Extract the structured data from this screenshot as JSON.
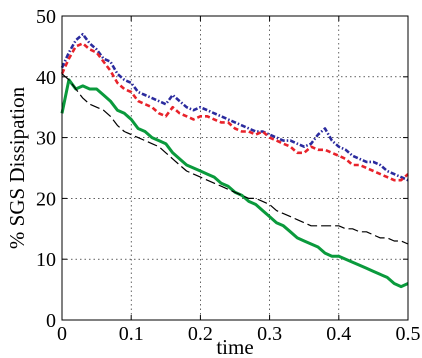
{
  "chart_data": {
    "type": "line",
    "title": "",
    "xlabel": "time",
    "ylabel": "% SGS Dissipation",
    "xlim": [
      0,
      0.5
    ],
    "ylim": [
      0,
      50
    ],
    "xticks": [
      0,
      0.1,
      0.2,
      0.3,
      0.4,
      0.5
    ],
    "xtick_labels": [
      "0",
      "0.1",
      "0.2",
      "0.3",
      "0.4",
      "0.5"
    ],
    "yticks": [
      0,
      10,
      20,
      30,
      40,
      50
    ],
    "ytick_labels": [
      "0",
      "10",
      "20",
      "30",
      "40",
      "50"
    ],
    "grid": true,
    "legend": "none",
    "series": [
      {
        "color": "#2b2b9e",
        "style": "dash-dot",
        "x": [
          0.0,
          0.01,
          0.02,
          0.03,
          0.04,
          0.05,
          0.06,
          0.07,
          0.08,
          0.09,
          0.1,
          0.11,
          0.12,
          0.13,
          0.14,
          0.15,
          0.16,
          0.17,
          0.18,
          0.19,
          0.2,
          0.21,
          0.22,
          0.23,
          0.24,
          0.25,
          0.26,
          0.27,
          0.28,
          0.29,
          0.3,
          0.31,
          0.32,
          0.33,
          0.34,
          0.35,
          0.36,
          0.37,
          0.38,
          0.39,
          0.4,
          0.41,
          0.42,
          0.43,
          0.44,
          0.45,
          0.46,
          0.47,
          0.48,
          0.49,
          0.5
        ],
        "y": [
          41.5,
          44.0,
          46.0,
          47.0,
          45.5,
          44.5,
          43.0,
          42.5,
          40.5,
          39.5,
          39.0,
          37.5,
          37.0,
          36.5,
          36.0,
          35.5,
          37.0,
          36.0,
          35.0,
          34.5,
          35.0,
          34.5,
          34.0,
          33.5,
          33.0,
          32.5,
          32.0,
          31.5,
          31.0,
          31.0,
          30.5,
          30.0,
          29.5,
          29.5,
          29.0,
          28.5,
          29.0,
          30.5,
          31.5,
          29.5,
          28.5,
          28.0,
          27.0,
          26.5,
          26.0,
          26.0,
          25.5,
          24.5,
          24.0,
          23.5,
          23.0
        ]
      },
      {
        "color": "#e8232b",
        "style": "dashed",
        "x": [
          0.0,
          0.01,
          0.02,
          0.03,
          0.04,
          0.05,
          0.06,
          0.07,
          0.08,
          0.09,
          0.1,
          0.11,
          0.12,
          0.13,
          0.14,
          0.15,
          0.16,
          0.17,
          0.18,
          0.19,
          0.2,
          0.21,
          0.22,
          0.23,
          0.24,
          0.25,
          0.26,
          0.27,
          0.28,
          0.29,
          0.3,
          0.31,
          0.32,
          0.33,
          0.34,
          0.35,
          0.36,
          0.37,
          0.38,
          0.39,
          0.4,
          0.41,
          0.42,
          0.43,
          0.44,
          0.45,
          0.46,
          0.47,
          0.48,
          0.49,
          0.5
        ],
        "y": [
          40.5,
          43.0,
          45.0,
          45.5,
          44.5,
          44.0,
          42.5,
          41.0,
          39.0,
          38.0,
          37.5,
          36.0,
          35.5,
          35.0,
          34.0,
          33.5,
          35.0,
          34.0,
          33.5,
          33.0,
          33.5,
          33.5,
          33.0,
          32.5,
          32.5,
          31.5,
          31.0,
          31.0,
          30.5,
          31.0,
          30.0,
          29.5,
          29.0,
          28.5,
          27.5,
          27.5,
          28.5,
          28.0,
          28.0,
          27.5,
          27.0,
          26.5,
          25.5,
          25.5,
          25.0,
          24.5,
          24.0,
          23.5,
          23.0,
          23.0,
          24.0
        ]
      },
      {
        "color": "#0a9a3c",
        "style": "solid",
        "x": [
          0.0,
          0.01,
          0.02,
          0.03,
          0.04,
          0.05,
          0.06,
          0.07,
          0.08,
          0.09,
          0.1,
          0.11,
          0.12,
          0.13,
          0.14,
          0.15,
          0.16,
          0.17,
          0.18,
          0.19,
          0.2,
          0.21,
          0.22,
          0.23,
          0.24,
          0.25,
          0.26,
          0.27,
          0.28,
          0.29,
          0.3,
          0.31,
          0.32,
          0.33,
          0.34,
          0.35,
          0.36,
          0.37,
          0.38,
          0.39,
          0.4,
          0.41,
          0.42,
          0.43,
          0.44,
          0.45,
          0.46,
          0.47,
          0.48,
          0.49,
          0.5
        ],
        "y": [
          34.0,
          39.5,
          38.0,
          38.5,
          38.0,
          38.0,
          37.0,
          36.0,
          34.5,
          34.0,
          33.0,
          31.5,
          31.0,
          30.0,
          29.5,
          29.0,
          27.5,
          26.5,
          25.5,
          25.0,
          24.5,
          24.0,
          23.5,
          22.5,
          22.0,
          21.0,
          20.5,
          19.5,
          19.0,
          18.0,
          17.0,
          16.0,
          15.5,
          14.5,
          13.5,
          13.0,
          12.5,
          12.0,
          11.0,
          10.5,
          10.5,
          10.0,
          9.5,
          9.0,
          8.5,
          8.0,
          7.5,
          7.0,
          6.0,
          5.5,
          6.0
        ]
      },
      {
        "color": "#000000",
        "style": "long-dash",
        "x": [
          0.0,
          0.01,
          0.02,
          0.03,
          0.04,
          0.05,
          0.06,
          0.07,
          0.08,
          0.09,
          0.1,
          0.11,
          0.12,
          0.13,
          0.14,
          0.15,
          0.16,
          0.17,
          0.18,
          0.19,
          0.2,
          0.21,
          0.22,
          0.23,
          0.24,
          0.25,
          0.26,
          0.27,
          0.28,
          0.29,
          0.3,
          0.31,
          0.32,
          0.33,
          0.34,
          0.35,
          0.36,
          0.37,
          0.38,
          0.39,
          0.4,
          0.41,
          0.42,
          0.43,
          0.44,
          0.45,
          0.46,
          0.47,
          0.48,
          0.49,
          0.5
        ],
        "y": [
          40.5,
          39.5,
          38.0,
          36.5,
          35.5,
          35.0,
          34.5,
          33.5,
          32.0,
          31.0,
          30.5,
          30.0,
          29.5,
          29.0,
          28.5,
          27.5,
          26.5,
          25.5,
          24.5,
          24.0,
          23.5,
          23.0,
          22.5,
          22.0,
          21.5,
          21.0,
          20.5,
          20.0,
          20.0,
          19.5,
          19.0,
          18.0,
          17.5,
          17.0,
          16.5,
          16.0,
          15.5,
          15.5,
          15.5,
          15.5,
          15.5,
          15.0,
          15.0,
          14.5,
          14.5,
          14.0,
          13.5,
          13.5,
          13.0,
          13.0,
          12.5
        ]
      }
    ]
  }
}
